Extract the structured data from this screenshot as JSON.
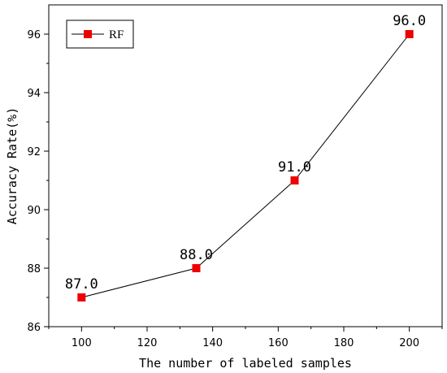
{
  "chart_data": {
    "type": "line",
    "xlabel": "The number of labeled samples",
    "ylabel": "Accuracy Rate(%)",
    "xlim": [
      90,
      210
    ],
    "ylim": [
      86,
      97
    ],
    "xticks": [
      100,
      120,
      140,
      160,
      180,
      200
    ],
    "yticks": [
      86,
      88,
      90,
      92,
      94,
      96
    ],
    "legend_position": "top-left",
    "grid": false,
    "series": [
      {
        "name": "RF",
        "color": "#ee0000",
        "marker": "square",
        "x": [
          100,
          135,
          165,
          200
        ],
        "y": [
          87.0,
          88.0,
          91.0,
          96.0
        ],
        "labels": [
          "87.0",
          "88.0",
          "91.0",
          "96.0"
        ]
      }
    ]
  }
}
